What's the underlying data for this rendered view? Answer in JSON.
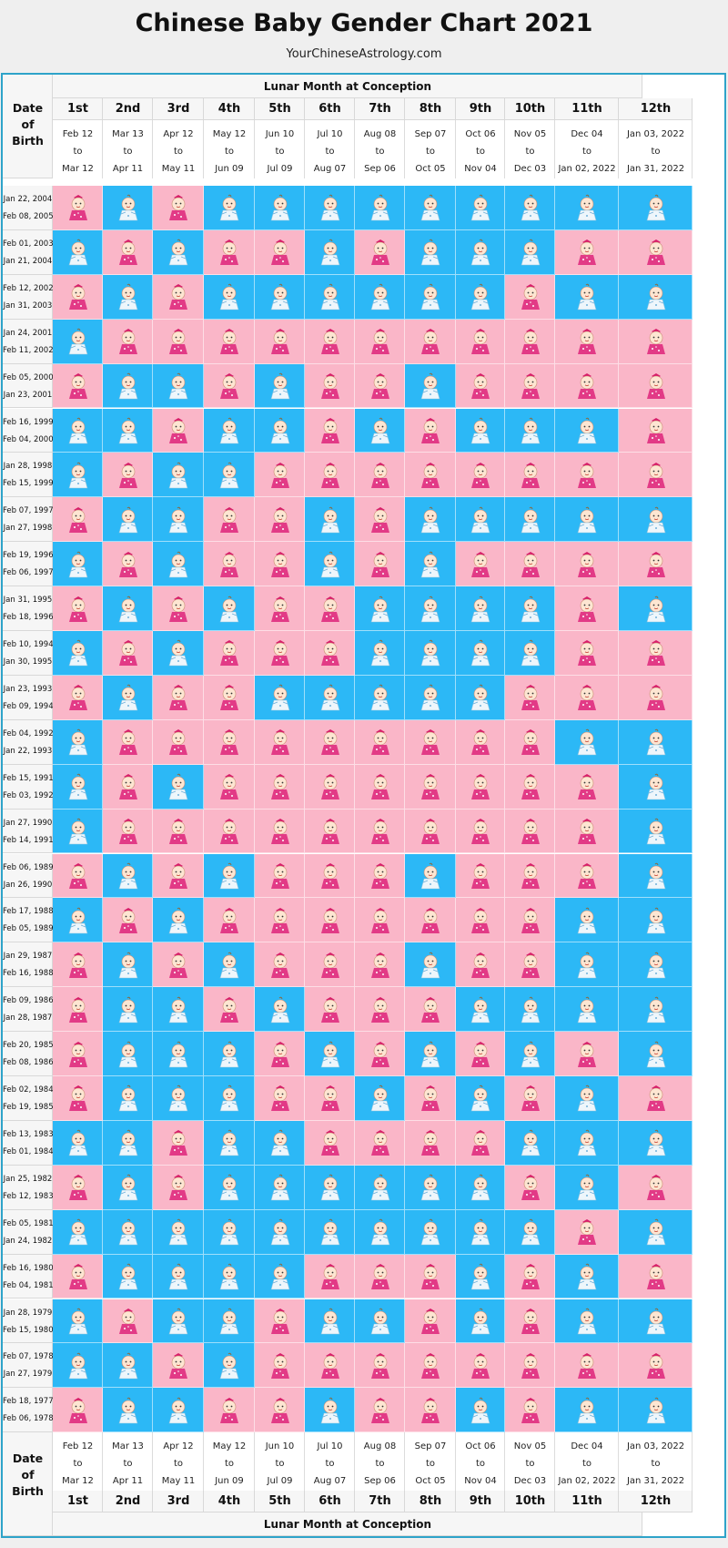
{
  "title": "Chinese Baby Gender Chart 2021",
  "site": "YourChineseAstrology.com",
  "lunar_header": "Lunar Month at Conception",
  "dob_header": [
    "Date",
    "of",
    "Birth"
  ],
  "months": [
    "1st",
    "2nd",
    "3rd",
    "4th",
    "5th",
    "6th",
    "7th",
    "8th",
    "9th",
    "10th",
    "11th",
    "12th"
  ],
  "month_ranges": [
    [
      "Feb 12",
      "to",
      "Mar 12"
    ],
    [
      "Mar 13",
      "to",
      "Apr 11"
    ],
    [
      "Apr 12",
      "to",
      "May 11"
    ],
    [
      "May 12",
      "to",
      "Jun 09"
    ],
    [
      "Jun 10",
      "to",
      "Jul 09"
    ],
    [
      "Jul 10",
      "to",
      "Aug 07"
    ],
    [
      "Aug 08",
      "to",
      "Sep 06"
    ],
    [
      "Sep 07",
      "to",
      "Oct 05"
    ],
    [
      "Oct 06",
      "to",
      "Nov 04"
    ],
    [
      "Nov 05",
      "to",
      "Dec 03"
    ],
    [
      "Dec 04",
      "to",
      "Jan 02, 2022"
    ],
    [
      "Jan 03, 2022",
      "to",
      "Jan 31, 2022"
    ]
  ],
  "legend_colors": {
    "boy": "#2cb8f6",
    "girl": "#fab6c8"
  },
  "icons": {
    "boy": "baby-boy-icon",
    "girl": "baby-girl-icon"
  },
  "rows": [
    {
      "from": "Jan 22, 2004",
      "to": "Feb 08, 2005",
      "cells": "GBGBBBBBBBBB"
    },
    {
      "from": "Feb 01, 2003",
      "to": "Jan 21, 2004",
      "cells": "BGBGGBGBBBGG"
    },
    {
      "from": "Feb 12, 2002",
      "to": "Jan 31, 2003",
      "cells": "GBGBBBBBBGBB"
    },
    {
      "from": "Jan 24, 2001",
      "to": "Feb 11, 2002",
      "cells": "BGGGGGGGGGGG"
    },
    {
      "from": "Feb 05, 2000",
      "to": "Jan 23, 2001",
      "cells": "GBBGBGGBGGGG"
    },
    {
      "from": "Feb 16, 1999",
      "to": "Feb 04, 2000",
      "cells": "BBGBBGBGBBBG"
    },
    {
      "from": "Jan 28, 1998",
      "to": "Feb 15, 1999",
      "cells": "BGBBGGGGGGGG"
    },
    {
      "from": "Feb 07, 1997",
      "to": "Jan 27, 1998",
      "cells": "GBBGGBGBBBBB"
    },
    {
      "from": "Feb 19, 1996",
      "to": "Feb 06, 1997",
      "cells": "BGBGGBGBGGGG"
    },
    {
      "from": "Jan 31, 1995",
      "to": "Feb 18, 1996",
      "cells": "GBGBGGBBBBGB"
    },
    {
      "from": "Feb 10, 1994",
      "to": "Jan 30, 1995",
      "cells": "BGBGGGBBBBGG"
    },
    {
      "from": "Jan 23, 1993",
      "to": "Feb 09, 1994",
      "cells": "GBGGBBBBBGGG"
    },
    {
      "from": "Feb 04, 1992",
      "to": "Jan 22, 1993",
      "cells": "BGGGGGGGGGBB"
    },
    {
      "from": "Feb 15, 1991",
      "to": "Feb 03, 1992",
      "cells": "BGBGGGGGGGGB"
    },
    {
      "from": "Jan 27, 1990",
      "to": "Feb 14, 1991",
      "cells": "BGGGGGGGGGGB"
    },
    {
      "from": "Feb 06, 1989",
      "to": "Jan 26, 1990",
      "cells": "GBGBGGGBGGGB"
    },
    {
      "from": "Feb 17, 1988",
      "to": "Feb 05, 1989",
      "cells": "BGBGGGGGGGBB"
    },
    {
      "from": "Jan 29, 1987",
      "to": "Feb 16, 1988",
      "cells": "GBGBGGGBGGBB"
    },
    {
      "from": "Feb 09, 1986",
      "to": "Jan 28, 1987",
      "cells": "GBBGBGGGBBBB"
    },
    {
      "from": "Feb 20, 1985",
      "to": "Feb 08, 1986",
      "cells": "GBBBGBGBGBGB"
    },
    {
      "from": "Feb 02, 1984",
      "to": "Feb 19, 1985",
      "cells": "GBBBGGBGBGBG"
    },
    {
      "from": "Feb 13, 1983",
      "to": "Feb 01, 1984",
      "cells": "BBGBBGGGGBBB"
    },
    {
      "from": "Jan 25, 1982",
      "to": "Feb 12, 1983",
      "cells": "GBGBBBBBBGBG"
    },
    {
      "from": "Feb 05, 1981",
      "to": "Jan 24, 1982",
      "cells": "BBBBBBBBBBGB"
    },
    {
      "from": "Feb 16, 1980",
      "to": "Feb 04, 1981",
      "cells": "GBBBBGGGBGBG"
    },
    {
      "from": "Jan 28, 1979",
      "to": "Feb 15, 1980",
      "cells": "BGBBGBBGBGBB"
    },
    {
      "from": "Feb 07, 1978",
      "to": "Jan 27, 1979",
      "cells": "BBGBGGGGGGGG"
    },
    {
      "from": "Feb 18, 1977",
      "to": "Feb 06, 1978",
      "cells": "GBBGGBGGBGBB"
    }
  ]
}
